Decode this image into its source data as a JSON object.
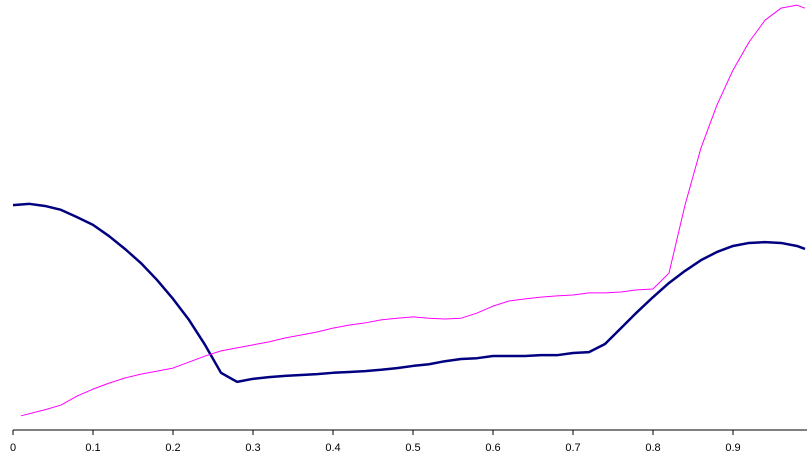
{
  "chart_data": {
    "type": "line",
    "xlim": [
      0,
      0.99
    ],
    "xticks": [
      0,
      0.1,
      0.2,
      0.3,
      0.4,
      0.5,
      0.6,
      0.7,
      0.8,
      0.9
    ],
    "ylim": [
      0,
      100
    ],
    "series": [
      {
        "color": "#000080",
        "x": [
          0,
          0.02,
          0.04,
          0.06,
          0.08,
          0.1,
          0.12,
          0.14,
          0.16,
          0.18,
          0.2,
          0.22,
          0.24,
          0.26,
          0.28,
          0.3,
          0.32,
          0.34,
          0.36,
          0.38,
          0.4,
          0.42,
          0.44,
          0.46,
          0.48,
          0.5,
          0.52,
          0.54,
          0.56,
          0.58,
          0.6,
          0.62,
          0.64,
          0.66,
          0.68,
          0.7,
          0.72,
          0.74,
          0.76,
          0.78,
          0.8,
          0.82,
          0.84,
          0.86,
          0.88,
          0.9,
          0.92,
          0.94,
          0.96,
          0.98,
          0.99
        ],
        "values": [
          52.3,
          52.6,
          52.1,
          51.2,
          49.5,
          47.7,
          45.1,
          42.1,
          38.8,
          34.9,
          30.5,
          25.6,
          19.8,
          13.3,
          11.2,
          11.9,
          12.3,
          12.6,
          12.8,
          13.0,
          13.3,
          13.5,
          13.7,
          14.0,
          14.4,
          14.9,
          15.3,
          16.0,
          16.5,
          16.7,
          17.2,
          17.2,
          17.2,
          17.4,
          17.4,
          17.9,
          18.1,
          20.0,
          23.7,
          27.4,
          30.9,
          34.2,
          37.0,
          39.5,
          41.4,
          42.8,
          43.5,
          43.7,
          43.5,
          42.8,
          42.1
        ]
      },
      {
        "color": "#ff00ff",
        "x": [
          0.01,
          0.04,
          0.06,
          0.08,
          0.1,
          0.12,
          0.14,
          0.16,
          0.18,
          0.2,
          0.22,
          0.24,
          0.26,
          0.28,
          0.3,
          0.32,
          0.34,
          0.36,
          0.38,
          0.4,
          0.42,
          0.44,
          0.46,
          0.48,
          0.5,
          0.52,
          0.54,
          0.56,
          0.58,
          0.6,
          0.62,
          0.64,
          0.66,
          0.68,
          0.7,
          0.72,
          0.74,
          0.76,
          0.78,
          0.8,
          0.82,
          0.84,
          0.86,
          0.88,
          0.9,
          0.92,
          0.94,
          0.96,
          0.98,
          0.99
        ],
        "values": [
          3.3,
          4.7,
          5.8,
          7.9,
          9.5,
          10.9,
          12.1,
          13.0,
          13.7,
          14.4,
          15.8,
          17.2,
          18.4,
          19.1,
          19.8,
          20.5,
          21.4,
          22.1,
          22.8,
          23.7,
          24.4,
          24.9,
          25.6,
          26.0,
          26.3,
          26.0,
          25.8,
          26.0,
          27.2,
          28.8,
          30.0,
          30.5,
          30.9,
          31.2,
          31.4,
          31.9,
          31.9,
          32.1,
          32.6,
          32.8,
          36.5,
          52.3,
          65.6,
          75.6,
          83.7,
          90.2,
          95.3,
          98.1,
          98.8,
          98.1
        ]
      }
    ]
  }
}
